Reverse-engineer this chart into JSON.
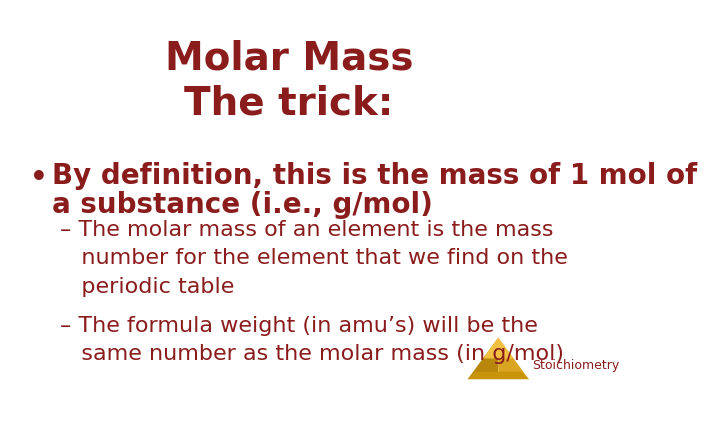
{
  "title_line1": "Molar Mass",
  "title_line2": "The trick:",
  "title_color": "#8B1C1C",
  "title_fontsize": 28,
  "background_color": "#FFFFFF",
  "text_color": "#8B1C1C",
  "bullet_text_line1": "By definition, this is the mass of 1 mol of",
  "bullet_text_line2": "a substance (i.e., g/mol)",
  "bullet_fontsize": 20,
  "sub1_lines": [
    "– The molar mass of an element is the mass",
    "   number for the element that we find on the",
    "   periodic table"
  ],
  "sub2_lines": [
    "– The formula weight (in amu’s) will be the",
    "   same number as the molar mass (in g/mol)"
  ],
  "sub_fontsize": 16,
  "watermark_text": "Stoichiometry",
  "watermark_fontsize": 9
}
